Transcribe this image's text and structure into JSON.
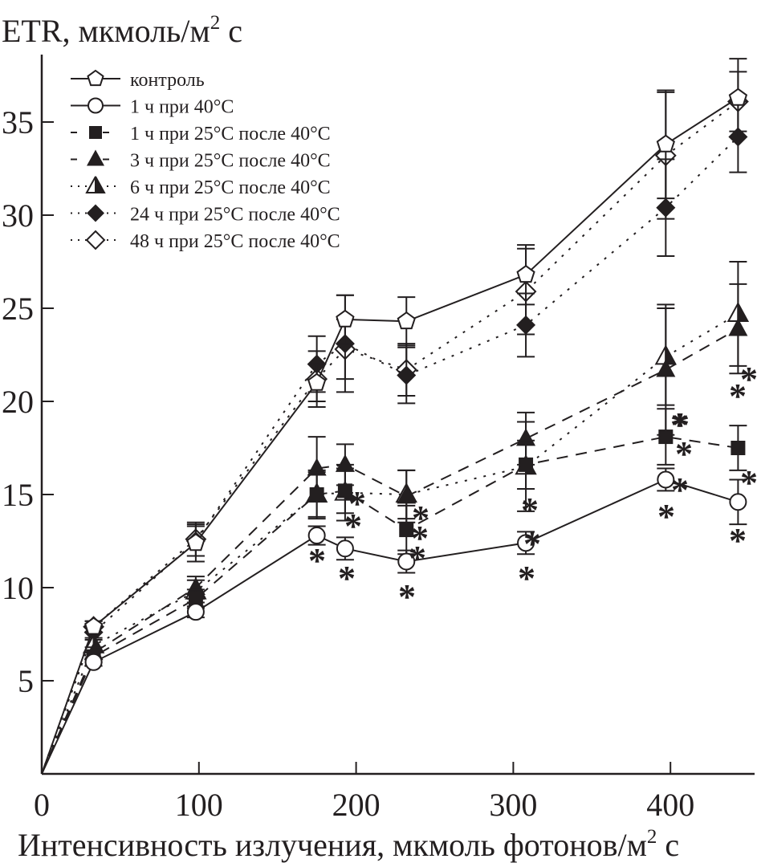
{
  "chart_data": {
    "type": "line",
    "title": "",
    "ylabel": "ETR, мкмоль/м",
    "ylabel_sup": "2",
    "ylabel_tail": " с",
    "xlabel": "Интенсивность излучения, мкмоль фотонов/м",
    "xlabel_sup": "2",
    "xlabel_tail": " с",
    "xlim": [
      0,
      455
    ],
    "ylim": [
      0,
      38
    ],
    "xticks": [
      0,
      100,
      200,
      300,
      400
    ],
    "yticks": [
      5,
      10,
      15,
      20,
      25,
      30,
      35
    ],
    "xtick_labels": [
      "0",
      "100",
      "200",
      "300",
      "400"
    ],
    "ytick_labels": [
      "5",
      "10",
      "15",
      "20",
      "25",
      "30",
      "35"
    ],
    "grid": false,
    "legend_position": "top-left",
    "x": [
      0,
      33,
      98,
      175,
      193,
      232,
      308,
      397,
      443
    ],
    "series": [
      {
        "name": "контроль",
        "marker": "pentagon-open",
        "line": "solid",
        "values": [
          0,
          7.9,
          12.4,
          21.0,
          24.4,
          24.3,
          26.8,
          33.8,
          36.3
        ],
        "err": [
          0,
          0.3,
          1.0,
          1.0,
          1.3,
          1.3,
          1.6,
          2.9,
          2.1
        ]
      },
      {
        "name": "1 ч при 40°С",
        "marker": "circle-open",
        "line": "solid",
        "values": [
          0,
          6.0,
          8.7,
          12.8,
          12.1,
          11.4,
          12.4,
          15.8,
          14.6
        ],
        "err": [
          0,
          0.2,
          0.3,
          0.5,
          0.6,
          0.6,
          0.6,
          0.6,
          1.2
        ]
      },
      {
        "name": "1 ч при 25°С после 40°С",
        "marker": "square-filled",
        "line": "dashed",
        "values": [
          0,
          6.3,
          9.4,
          15.0,
          15.2,
          13.1,
          16.6,
          18.1,
          17.5
        ],
        "err": [
          0,
          0.3,
          0.5,
          1.2,
          1.2,
          1.3,
          1.3,
          1.5,
          1.2
        ]
      },
      {
        "name": "3 ч при 25°С после 40°С",
        "marker": "triangle-filled",
        "line": "dashed",
        "values": [
          0,
          6.5,
          10.0,
          16.4,
          16.6,
          14.9,
          18.0,
          21.7,
          23.9
        ],
        "err": [
          0,
          0.3,
          0.6,
          1.7,
          1.1,
          1.4,
          1.4,
          3.5,
          2.4
        ]
      },
      {
        "name": "6 ч при 25°С после 40°С",
        "marker": "triangle-half",
        "line": "dotted",
        "values": [
          0,
          6.9,
          9.8,
          15.0,
          15.1,
          15.0,
          16.5,
          22.4,
          24.7
        ],
        "err": [
          0,
          0.3,
          0.6,
          1.3,
          1.5,
          1.3,
          2.4,
          2.6,
          2.8
        ]
      },
      {
        "name": "24 ч при 25°С после 40°С",
        "marker": "diamond-filled",
        "line": "dotted",
        "values": [
          0,
          7.6,
          12.5,
          22.0,
          23.1,
          21.4,
          24.1,
          30.4,
          34.2
        ],
        "err": [
          0,
          0.3,
          0.8,
          1.5,
          2.6,
          1.5,
          1.7,
          2.6,
          1.9
        ]
      },
      {
        "name": "48 ч при 25°С после 40°С",
        "marker": "diamond-open",
        "line": "dotted",
        "values": [
          0,
          7.9,
          12.6,
          21.2,
          22.8,
          21.7,
          25.9,
          33.2,
          36.1
        ],
        "err": [
          0,
          0.3,
          0.9,
          1.5,
          1.6,
          1.4,
          2.3,
          3.4,
          1.6
        ]
      }
    ],
    "annotations": [
      {
        "text": "*",
        "x": 175,
        "series": "1 ч при 40°С"
      },
      {
        "text": "*",
        "x": 193,
        "series": "1 ч при 40°С"
      },
      {
        "text": "*",
        "x": 232,
        "series": "1 ч при 40°С"
      },
      {
        "text": "*",
        "x": 308,
        "series": "1 ч при 40°С"
      },
      {
        "text": "*",
        "x": 397,
        "series": "1 ч при 40°С"
      },
      {
        "text": "*",
        "x": 443,
        "series": "1 ч при 40°С"
      }
    ]
  }
}
